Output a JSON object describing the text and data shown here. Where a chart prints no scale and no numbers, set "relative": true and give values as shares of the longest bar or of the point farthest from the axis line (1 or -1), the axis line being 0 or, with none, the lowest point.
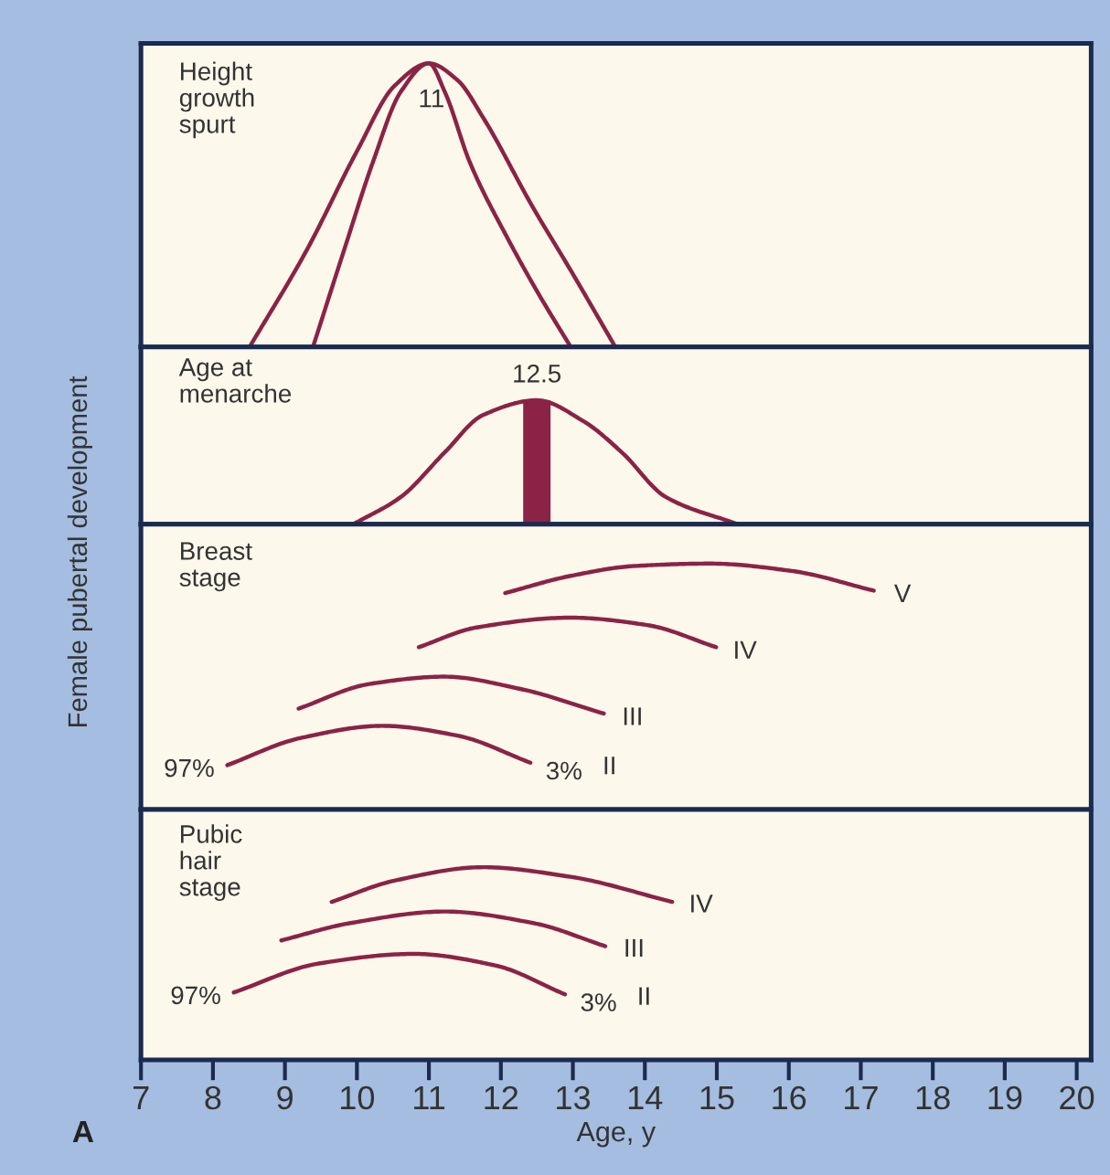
{
  "chart_data": [
    {
      "type": "line",
      "title": "Height\ngrowth\nspurt",
      "ylabel": "Female pubertal development",
      "relative": true,
      "xlim": [
        7,
        20.2
      ],
      "xticks": [
        7,
        8,
        9,
        10,
        11,
        12,
        13,
        14,
        15,
        16,
        17,
        18,
        19,
        20
      ],
      "tick_labels": false,
      "legend": false,
      "grid": false,
      "series": [
        {
          "color": "#8b2346",
          "x": [
            8.51,
            9.3,
            10.0,
            10.52,
            11.0,
            11.4,
            11.75,
            12.45,
            12.97,
            13.59
          ],
          "values": [
            0,
            0.34,
            0.69,
            0.92,
            1,
            0.94,
            0.81,
            0.49,
            0.27,
            0
          ]
        },
        {
          "color": "#8b2346",
          "x": [
            9.39,
            9.82,
            10.22,
            10.61,
            11.0,
            11.22,
            11.57,
            12.1,
            12.54,
            12.97
          ],
          "values": [
            0,
            0.34,
            0.65,
            0.9,
            1,
            0.9,
            0.65,
            0.38,
            0.18,
            0
          ]
        }
      ],
      "annotations": [
        {
          "text": "11",
          "x": 11.0,
          "y": 1
        }
      ]
    },
    {
      "type": "line",
      "title": "Age at\nmenarche",
      "relative": true,
      "xlim": [
        7,
        20.2
      ],
      "xticks": [
        7,
        8,
        9,
        10,
        11,
        12,
        13,
        14,
        15,
        16,
        17,
        18,
        19,
        20
      ],
      "tick_labels": false,
      "legend": false,
      "grid": false,
      "series": [
        {
          "color": "#8b2346",
          "x": [
            9.95,
            10.61,
            11.22,
            11.75,
            12.5,
            13.15,
            13.68,
            14.29,
            15.29
          ],
          "values": [
            0,
            0.22,
            0.58,
            0.88,
            1,
            0.83,
            0.58,
            0.22,
            0
          ]
        },
        {
          "type": "bar",
          "color": "#8b2346",
          "x": [
            12.5
          ],
          "values": [
            1
          ]
        }
      ],
      "annotations": [
        {
          "text": "12.5",
          "x": 12.5,
          "y": 1
        }
      ]
    },
    {
      "type": "line",
      "title": "Breast\nstage",
      "relative": true,
      "xlim": [
        7,
        20.2
      ],
      "xticks": [
        7,
        8,
        9,
        10,
        11,
        12,
        13,
        14,
        15,
        16,
        17,
        18,
        19,
        20
      ],
      "tick_labels": false,
      "legend": false,
      "grid": false,
      "series": [
        {
          "name": "V",
          "color": "#8b2346",
          "x": [
            12.06,
            12.97,
            13.85,
            14.9,
            16.04,
            17.18
          ],
          "values": [
            0.88,
            0.95,
            0.99,
            1,
            0.97,
            0.89
          ]
        },
        {
          "name": "IV",
          "color": "#8b2346",
          "x": [
            10.86,
            11.66,
            12.97,
            14.03,
            14.99
          ],
          "values": [
            0.66,
            0.74,
            0.78,
            0.75,
            0.66
          ]
        },
        {
          "name": "III",
          "color": "#8b2346",
          "x": [
            9.19,
            10.17,
            11.22,
            12.27,
            13.43
          ],
          "values": [
            0.41,
            0.51,
            0.54,
            0.49,
            0.39
          ]
        },
        {
          "name": "II",
          "color": "#8b2346",
          "x": [
            8.2,
            9.21,
            10.35,
            11.4,
            12.41
          ],
          "values": [
            0.18,
            0.29,
            0.34,
            0.3,
            0.19
          ]
        }
      ],
      "annotations": [
        {
          "text": "97%",
          "x": 8.2,
          "y": 0.18
        },
        {
          "text": "3%",
          "x": 12.41,
          "y": 0.19
        }
      ]
    },
    {
      "type": "line",
      "title": "Pubic\nhair\nstage",
      "xlabel": "Age, y",
      "relative": true,
      "xlim": [
        7,
        20.2
      ],
      "xticks": [
        7,
        8,
        9,
        10,
        11,
        12,
        13,
        14,
        15,
        16,
        17,
        18,
        19,
        20
      ],
      "tick_labels": "x",
      "legend": false,
      "grid": false,
      "series": [
        {
          "name": "IV",
          "color": "#8b2346",
          "x": [
            9.65,
            10.52,
            11.75,
            12.97,
            14.38
          ],
          "values": [
            0.82,
            0.93,
            1,
            0.95,
            0.82
          ]
        },
        {
          "name": "III",
          "color": "#8b2346",
          "x": [
            8.95,
            9.91,
            11.22,
            12.45,
            13.45
          ],
          "values": [
            0.62,
            0.71,
            0.77,
            0.71,
            0.59
          ]
        },
        {
          "name": "II",
          "color": "#8b2346",
          "x": [
            8.29,
            9.47,
            10.79,
            11.92,
            12.89
          ],
          "values": [
            0.35,
            0.5,
            0.55,
            0.49,
            0.34
          ]
        }
      ],
      "annotations": [
        {
          "text": "97%",
          "x": 8.29,
          "y": 0.35
        },
        {
          "text": "3%",
          "x": 12.89,
          "y": 0.34
        },
        "A"
      ]
    }
  ]
}
